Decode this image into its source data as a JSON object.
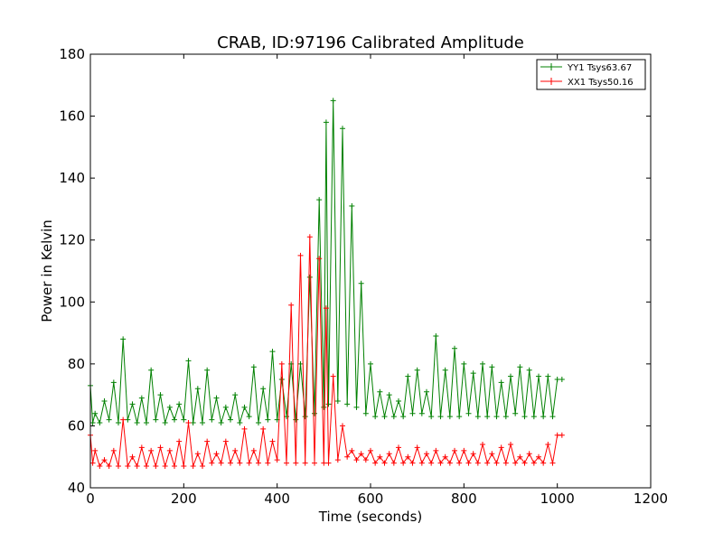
{
  "chart_data": {
    "type": "line",
    "title": "CRAB, ID:97196 Calibrated Amplitude",
    "xlabel": "Time (seconds)",
    "ylabel": "Power in Kelvin",
    "xlim": [
      0,
      1200
    ],
    "ylim": [
      40,
      180
    ],
    "xticks": [
      "0",
      "200",
      "400",
      "600",
      "800",
      "1000",
      "1200"
    ],
    "yticks": [
      "40",
      "60",
      "80",
      "100",
      "120",
      "140",
      "160",
      "180"
    ],
    "grid": false,
    "legend_position": "top-right",
    "marker": "+",
    "series": [
      {
        "name": "YY1 Tsys63.67",
        "color": "#008000",
        "x": [
          0,
          5,
          10,
          20,
          30,
          40,
          50,
          60,
          70,
          80,
          90,
          100,
          110,
          120,
          130,
          140,
          150,
          160,
          170,
          180,
          190,
          200,
          210,
          220,
          230,
          240,
          250,
          260,
          270,
          280,
          290,
          300,
          310,
          320,
          330,
          340,
          350,
          360,
          370,
          380,
          390,
          400,
          410,
          420,
          430,
          440,
          450,
          460,
          470,
          480,
          490,
          500,
          505,
          510,
          520,
          530,
          540,
          550,
          560,
          570,
          580,
          590,
          600,
          610,
          620,
          630,
          640,
          650,
          660,
          670,
          680,
          690,
          700,
          710,
          720,
          730,
          740,
          750,
          760,
          770,
          780,
          790,
          800,
          810,
          820,
          830,
          840,
          850,
          860,
          870,
          880,
          890,
          900,
          910,
          920,
          930,
          940,
          950,
          960,
          970,
          980,
          990,
          1000,
          1010
        ],
        "values": [
          73,
          61,
          64,
          61,
          68,
          62,
          74,
          61,
          88,
          62,
          67,
          61,
          69,
          61,
          78,
          62,
          70,
          61,
          66,
          62,
          67,
          62,
          81,
          61,
          72,
          61,
          78,
          62,
          69,
          61,
          66,
          62,
          70,
          61,
          66,
          63,
          79,
          61,
          72,
          62,
          84,
          62,
          75,
          63,
          80,
          62,
          80,
          63,
          108,
          64,
          133,
          66,
          158,
          67,
          165,
          68,
          156,
          67,
          131,
          66,
          106,
          64,
          80,
          63,
          71,
          63,
          70,
          63,
          68,
          63,
          76,
          64,
          78,
          64,
          71,
          63,
          89,
          63,
          78,
          63,
          85,
          63,
          80,
          64,
          77,
          63,
          80,
          63,
          79,
          63,
          74,
          63,
          76,
          64,
          79,
          63,
          78,
          63,
          76,
          63,
          76,
          63,
          75,
          75
        ]
      },
      {
        "name": "XX1 Tsys50.16",
        "color": "#ff0000",
        "x": [
          0,
          5,
          10,
          20,
          30,
          40,
          50,
          60,
          70,
          80,
          90,
          100,
          110,
          120,
          130,
          140,
          150,
          160,
          170,
          180,
          190,
          200,
          210,
          220,
          230,
          240,
          250,
          260,
          270,
          280,
          290,
          300,
          310,
          320,
          330,
          340,
          350,
          360,
          370,
          380,
          390,
          400,
          410,
          420,
          430,
          440,
          450,
          460,
          470,
          480,
          490,
          500,
          505,
          510,
          520,
          530,
          540,
          550,
          560,
          570,
          580,
          590,
          600,
          610,
          620,
          630,
          640,
          650,
          660,
          670,
          680,
          690,
          700,
          710,
          720,
          730,
          740,
          750,
          760,
          770,
          780,
          790,
          800,
          810,
          820,
          830,
          840,
          850,
          860,
          870,
          880,
          890,
          900,
          910,
          920,
          930,
          940,
          950,
          960,
          970,
          980,
          990,
          1000,
          1010
        ],
        "values": [
          57,
          48,
          52,
          47,
          49,
          47,
          52,
          47,
          62,
          47,
          50,
          47,
          53,
          47,
          52,
          47,
          53,
          47,
          52,
          47,
          55,
          47,
          61,
          47,
          51,
          47,
          55,
          48,
          51,
          48,
          55,
          48,
          52,
          48,
          59,
          48,
          52,
          48,
          59,
          48,
          55,
          49,
          80,
          48,
          99,
          48,
          115,
          48,
          121,
          48,
          114,
          48,
          98,
          48,
          76,
          49,
          60,
          50,
          52,
          49,
          51,
          49,
          52,
          48,
          50,
          48,
          51,
          48,
          53,
          48,
          50,
          48,
          53,
          48,
          51,
          48,
          52,
          48,
          50,
          48,
          52,
          48,
          52,
          48,
          51,
          48,
          54,
          48,
          51,
          48,
          53,
          48,
          54,
          48,
          50,
          48,
          51,
          48,
          50,
          48,
          54,
          48,
          57,
          57
        ]
      }
    ]
  }
}
